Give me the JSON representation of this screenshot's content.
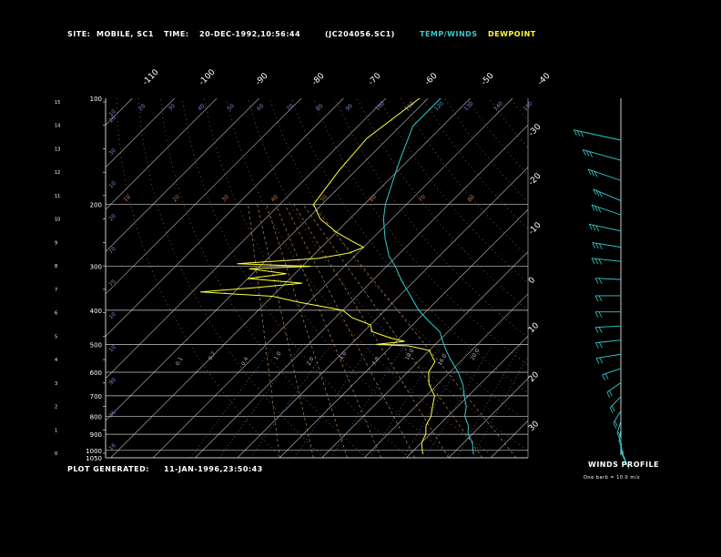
{
  "header": {
    "site_label": "SITE:",
    "site_value": "MOBILE, SC1",
    "time_label": "TIME:",
    "time_value": "20-DEC-1992,10:56:44",
    "file_id": "(JC204056.SC1)",
    "temp_winds_label": "TEMP/WINDS",
    "dewpoint_label": "DEWPOINT"
  },
  "footer": {
    "plot_generated_label": "PLOT GENERATED:",
    "plot_generated_value": "11-JAN-1996,23:50:43",
    "winds_profile_label": "WINDS PROFILE",
    "barb_note": "One barb = 10.0 m/s"
  },
  "colors": {
    "background": "#000000",
    "temp_winds": "#33cccc",
    "dewpoint": "#ffff33",
    "isobars": "#cccccc",
    "isotherms": "#bbbbbb",
    "mixing_ratio": "#7788cc",
    "dry_adiabat": "#cc7755",
    "moist_adiabat": "#cc9966"
  },
  "chart_data": {
    "type": "line",
    "pressure_levels_hpa": [
      "100",
      "200",
      "300",
      "400",
      "500",
      "600",
      "700",
      "800",
      "900",
      "1000",
      "1050"
    ],
    "left_height_ticks_km": [
      "15",
      "14",
      "13",
      "12",
      "11",
      "10",
      "9",
      "8",
      "7",
      "6",
      "5",
      "4",
      "3",
      "2",
      "1",
      "0"
    ],
    "top_isotherm_labels": [
      "-110",
      "-100",
      "-90",
      "-80",
      "-70",
      "-60",
      "-50",
      "-40"
    ],
    "right_isotherm_labels": [
      "-30",
      "-20",
      "-10",
      "0",
      "10",
      "20",
      "30"
    ],
    "potential_temp_labels": [
      "10",
      "20",
      "30",
      "40",
      "50",
      "60",
      "70",
      "80",
      "90",
      "100",
      "110",
      "120",
      "130",
      "140",
      "150"
    ],
    "theta_e_labels": [
      "10",
      "20",
      "30",
      "40",
      "50",
      "60",
      "70",
      "80"
    ],
    "mixing_ratio_labels": [
      "0.1",
      "0.2",
      "0.4",
      "1.0",
      "2.0",
      "4.0",
      "7.0",
      "10.0",
      "16.0",
      "20.0"
    ],
    "left_adiabat_labels": [
      "16",
      "35",
      "90",
      "10",
      "10",
      "75",
      "70",
      "20",
      "10",
      "30",
      "26"
    ],
    "series": [
      {
        "name": "TEMP/WINDS",
        "points": [
          [
            100,
            -67
          ],
          [
            120,
            -67
          ],
          [
            150,
            -62
          ],
          [
            170,
            -59
          ],
          [
            200,
            -55
          ],
          [
            220,
            -52
          ],
          [
            250,
            -47
          ],
          [
            280,
            -42
          ],
          [
            300,
            -38
          ],
          [
            330,
            -33
          ],
          [
            360,
            -28
          ],
          [
            400,
            -22
          ],
          [
            430,
            -17
          ],
          [
            460,
            -12
          ],
          [
            500,
            -8
          ],
          [
            530,
            -5
          ],
          [
            560,
            -2
          ],
          [
            600,
            2
          ],
          [
            650,
            6
          ],
          [
            700,
            9
          ],
          [
            750,
            12
          ],
          [
            800,
            14
          ],
          [
            850,
            17
          ],
          [
            900,
            19
          ],
          [
            950,
            22
          ],
          [
            1000,
            24
          ],
          [
            1025,
            25
          ]
        ]
      },
      {
        "name": "DEWPOINT",
        "points": [
          [
            100,
            -72
          ],
          [
            130,
            -75
          ],
          [
            160,
            -74
          ],
          [
            200,
            -72
          ],
          [
            220,
            -67
          ],
          [
            240,
            -60
          ],
          [
            255,
            -54
          ],
          [
            265,
            -50
          ],
          [
            275,
            -52
          ],
          [
            285,
            -58
          ],
          [
            295,
            -76
          ],
          [
            300,
            -58
          ],
          [
            305,
            -72
          ],
          [
            315,
            -62
          ],
          [
            325,
            -70
          ],
          [
            335,
            -56
          ],
          [
            345,
            -66
          ],
          [
            355,
            -78
          ],
          [
            365,
            -60
          ],
          [
            380,
            -52
          ],
          [
            400,
            -40
          ],
          [
            420,
            -36
          ],
          [
            440,
            -30
          ],
          [
            460,
            -28
          ],
          [
            480,
            -22
          ],
          [
            490,
            -18
          ],
          [
            495,
            -21
          ],
          [
            500,
            -24
          ],
          [
            505,
            -16
          ],
          [
            520,
            -10
          ],
          [
            540,
            -8
          ],
          [
            560,
            -6
          ],
          [
            600,
            -5
          ],
          [
            650,
            -2
          ],
          [
            700,
            2
          ],
          [
            750,
            4
          ],
          [
            800,
            6
          ],
          [
            850,
            7
          ],
          [
            900,
            9
          ],
          [
            950,
            10
          ],
          [
            1000,
            12
          ],
          [
            1025,
            13
          ]
        ]
      }
    ],
    "winds_profile": {
      "series": "TEMP/WINDS",
      "barbs": [
        {
          "height_km": 15.5,
          "direction_deg": 290,
          "speed_ms": 50
        },
        {
          "height_km": 14.5,
          "direction_deg": 295,
          "speed_ms": 40
        },
        {
          "height_km": 13.5,
          "direction_deg": 300,
          "speed_ms": 35
        },
        {
          "height_km": 12.5,
          "direction_deg": 305,
          "speed_ms": 30
        },
        {
          "height_km": 11.8,
          "direction_deg": 300,
          "speed_ms": 30
        },
        {
          "height_km": 11.0,
          "direction_deg": 290,
          "speed_ms": 30
        },
        {
          "height_km": 10.2,
          "direction_deg": 285,
          "speed_ms": 25
        },
        {
          "height_km": 9.5,
          "direction_deg": 280,
          "speed_ms": 25
        },
        {
          "height_km": 8.6,
          "direction_deg": 275,
          "speed_ms": 20
        },
        {
          "height_km": 7.8,
          "direction_deg": 270,
          "speed_ms": 20
        },
        {
          "height_km": 7.0,
          "direction_deg": 270,
          "speed_ms": 20
        },
        {
          "height_km": 6.3,
          "direction_deg": 265,
          "speed_ms": 20
        },
        {
          "height_km": 5.6,
          "direction_deg": 260,
          "speed_ms": 20
        },
        {
          "height_km": 4.9,
          "direction_deg": 255,
          "speed_ms": 20
        },
        {
          "height_km": 4.2,
          "direction_deg": 240,
          "speed_ms": 15
        },
        {
          "height_km": 3.5,
          "direction_deg": 220,
          "speed_ms": 15
        },
        {
          "height_km": 2.8,
          "direction_deg": 210,
          "speed_ms": 15
        },
        {
          "height_km": 2.1,
          "direction_deg": 200,
          "speed_ms": 15
        },
        {
          "height_km": 1.6,
          "direction_deg": 190,
          "speed_ms": 15
        },
        {
          "height_km": 1.2,
          "direction_deg": 185,
          "speed_ms": 15
        },
        {
          "height_km": 0.8,
          "direction_deg": 180,
          "speed_ms": 15
        },
        {
          "height_km": 0.5,
          "direction_deg": 175,
          "speed_ms": 15
        },
        {
          "height_km": 0.3,
          "direction_deg": 170,
          "speed_ms": 15
        },
        {
          "height_km": 0.1,
          "direction_deg": 165,
          "speed_ms": 15
        }
      ]
    }
  }
}
